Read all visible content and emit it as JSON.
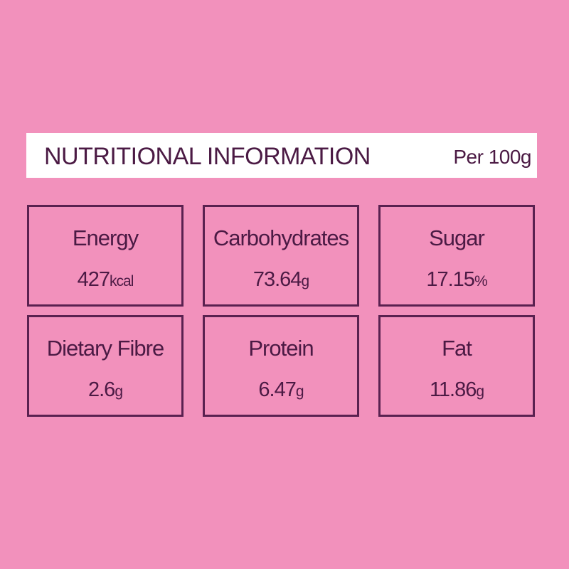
{
  "header": {
    "title": "NUTRITIONAL INFORMATION",
    "serving": "Per 100g"
  },
  "nutrients": [
    {
      "label": "Energy",
      "value": "427",
      "unit": "kcal"
    },
    {
      "label": "Carbohydrates",
      "value": "73.64",
      "unit": "g"
    },
    {
      "label": "Sugar",
      "value": "17.15",
      "unit": "%"
    },
    {
      "label": "Dietary Fibre",
      "value": "2.6",
      "unit": "g"
    },
    {
      "label": "Protein",
      "value": "6.47",
      "unit": "g"
    },
    {
      "label": "Fat",
      "value": "11.86",
      "unit": "g"
    }
  ]
}
